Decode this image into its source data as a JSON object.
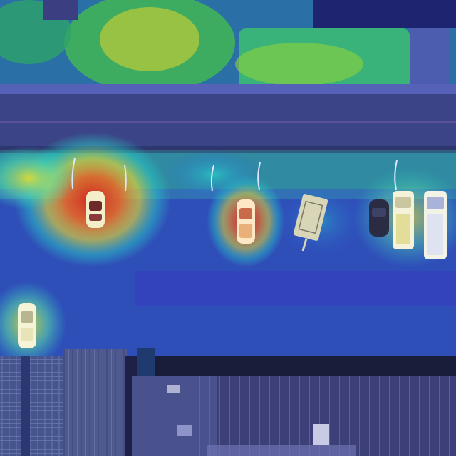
{
  "image": {
    "kind": "aerial photograph with attention heatmap overlay",
    "palette": {
      "road": "#3b4486",
      "parking_lot": "#2f4fb8",
      "grass": "#2fb06a",
      "roof_shingles": "#55608f",
      "heat_low": "#2a2fc0",
      "heat_mid": "#26d3c7",
      "heat_high": "#f2e02a",
      "heat_peak": "#d9241a"
    },
    "objects": [
      {
        "type": "vehicle",
        "color": "#f3f0c9",
        "heat": "high"
      },
      {
        "type": "vehicle",
        "color": "#f6f4d6",
        "heat": "high"
      },
      {
        "type": "vehicle",
        "color": "#fde7c4",
        "heat": "high"
      },
      {
        "type": "trailer",
        "color": "#d9d6b8",
        "heat": "low"
      },
      {
        "type": "vehicle",
        "color": "#2a2c44",
        "heat": "low"
      },
      {
        "type": "truck",
        "color": "#f4f2d8",
        "heat": "mid"
      },
      {
        "type": "truck",
        "color": "#f2f3e6",
        "heat": "mid"
      }
    ]
  }
}
